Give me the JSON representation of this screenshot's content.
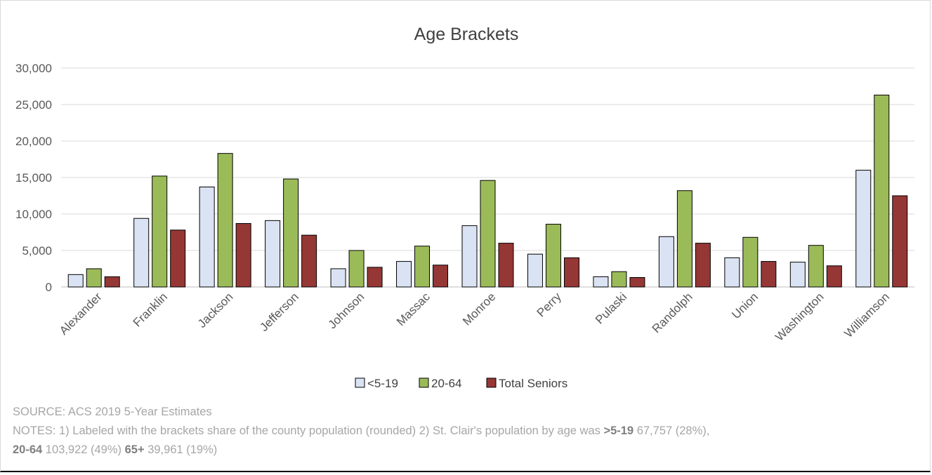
{
  "chart_data": {
    "type": "bar",
    "title": "Age Brackets",
    "categories": [
      "Alexander",
      "Franklin",
      "Jackson",
      "Jefferson",
      "Johnson",
      "Massac",
      "Monroe",
      "Perry",
      "Pulaski",
      "Randolph",
      "Union",
      "Washington",
      "Williamson"
    ],
    "series": [
      {
        "name": "<5-19",
        "color": "#dae3f3",
        "values": [
          1700,
          9400,
          13700,
          9100,
          2500,
          3500,
          8400,
          4500,
          1400,
          6900,
          4000,
          3400,
          16000
        ]
      },
      {
        "name": "20-64",
        "color": "#9bbb59",
        "values": [
          2500,
          15200,
          18300,
          14800,
          5000,
          5600,
          14600,
          8600,
          2100,
          13200,
          6800,
          5700,
          26300
        ]
      },
      {
        "name": "Total Seniors",
        "color": "#953735",
        "values": [
          1400,
          7800,
          8700,
          7100,
          2700,
          3000,
          6000,
          4000,
          1300,
          6000,
          3500,
          2900,
          12500
        ]
      }
    ],
    "ylim": [
      0,
      30000
    ],
    "yticks": [
      "0",
      "5,000",
      "10,000",
      "15,000",
      "20,000",
      "25,000",
      "30,000"
    ],
    "grid": true,
    "legend_position": "bottom"
  },
  "notes": {
    "source": "SOURCE: ACS 2019 5-Year Estimates",
    "line1_text": "NOTES: 1) Labeled with the brackets share of the county population (rounded) 2) St. Clair's population by age was ",
    "b1_label": ">5-19",
    "b1_value": " 67,757 (28%),",
    "b2_label": "20-64",
    "b2_value": " 103,922 (49%) ",
    "b3_label": "65+",
    "b3_value": " 39,961 (19%)"
  }
}
